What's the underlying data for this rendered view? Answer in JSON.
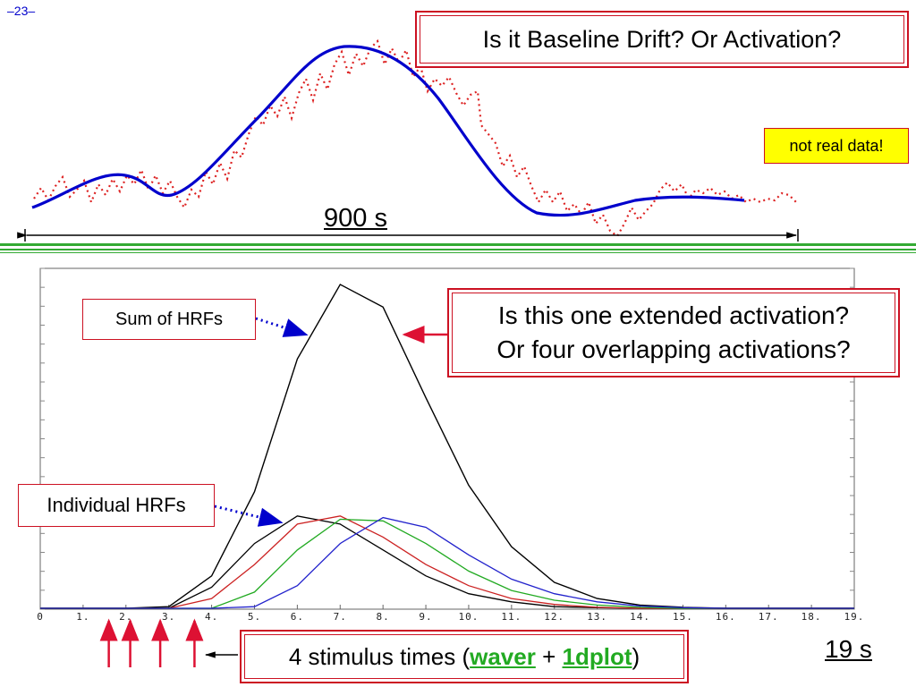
{
  "slide": {
    "number": "–23–"
  },
  "top_panel": {
    "title": "Is it Baseline Drift?  Or Activation?",
    "note": "not real data!",
    "span_label": "900 s",
    "colors": {
      "smooth": "#0000cc",
      "noisy": "#dd2222",
      "divider": "#33aa33"
    }
  },
  "bottom_panel": {
    "question_line1": "Is this one extended activation?",
    "question_line2": "Or four overlapping activations?",
    "sum_label": "Sum of HRFs",
    "individual_label": "Individual HRFs",
    "stimulus_text": "4 stimulus times",
    "stimulus_tool1": "waver",
    "stimulus_plus": "+",
    "stimulus_tool2": "1dplot",
    "stimulus_paren_open": "(",
    "stimulus_paren_close": ")",
    "duration_label": "19 s"
  },
  "chart_data": {
    "type": "line",
    "x": [
      0,
      1,
      2,
      3,
      4,
      5,
      6,
      7,
      8,
      9,
      10,
      11,
      12,
      13,
      14,
      15,
      16,
      17,
      18,
      19
    ],
    "x_tick_labels": [
      "0",
      "1.",
      "2.",
      "3.",
      "4.",
      "5.",
      "6.",
      "7.",
      "8.",
      "9.",
      "10.",
      "11.",
      "12.",
      "13.",
      "14.",
      "15.",
      "16.",
      "17.",
      "18.",
      "19."
    ],
    "xlim": [
      0,
      19
    ],
    "ylim": [
      0,
      100
    ],
    "series": [
      {
        "values": [
          0,
          0,
          0,
          0.5,
          10,
          36,
          77,
          100,
          93,
          65,
          38,
          19,
          8,
          3,
          1,
          0.3,
          0,
          0,
          0,
          0
        ],
        "color": "#000000"
      },
      {
        "values": [
          0,
          0,
          0,
          0,
          6.5,
          20,
          28.5,
          26,
          18,
          10,
          4.5,
          2,
          0.5,
          0.2,
          0,
          0,
          0,
          0,
          0,
          0
        ],
        "color": "#000000"
      },
      {
        "values": [
          0,
          0,
          0,
          0,
          3,
          13.5,
          26,
          28.5,
          22,
          13.5,
          7,
          3,
          1.2,
          0.3,
          0,
          0,
          0,
          0,
          0,
          0
        ],
        "color": "#cc2222"
      },
      {
        "values": [
          0,
          0,
          0,
          0,
          0,
          5,
          18,
          27.5,
          27,
          20,
          11.5,
          5.5,
          2.5,
          1,
          0.3,
          0,
          0,
          0,
          0,
          0
        ],
        "color": "#22aa22"
      },
      {
        "values": [
          0,
          0,
          0,
          0,
          0,
          0.5,
          7,
          20,
          28,
          25,
          16.5,
          9,
          4.5,
          2,
          0.7,
          0.2,
          0,
          0,
          0,
          0
        ],
        "color": "#2222cc"
      }
    ],
    "stimulus_times": [
      1.6,
      2.1,
      2.8,
      3.6
    ]
  }
}
